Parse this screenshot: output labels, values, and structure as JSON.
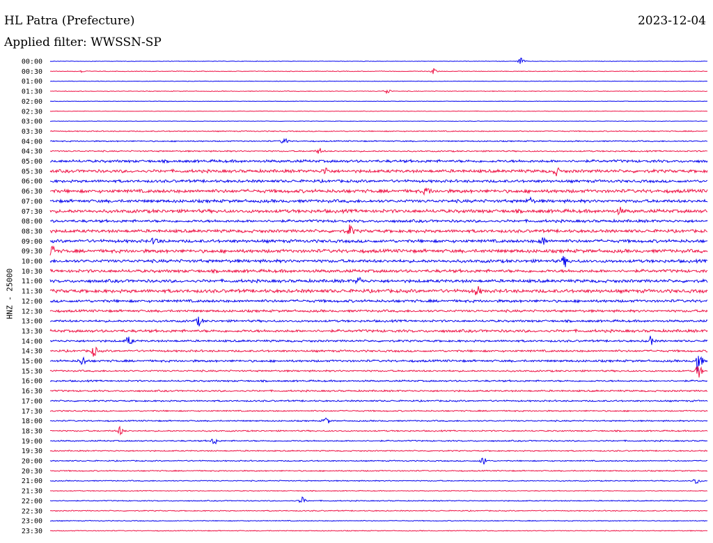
{
  "header": {
    "station": "HL Patra (Prefecture)",
    "date": "2023-12-04",
    "filter": "Applied filter: WWSSN-SP"
  },
  "colors": {
    "even_rows": "#0000ee",
    "odd_rows": "#ee1144",
    "background": "#ffffff"
  },
  "chart_data": {
    "type": "line",
    "subtype": "helicorder",
    "title": "HL Patra (Prefecture)",
    "date": "2023-12-04",
    "ylabel": "HNZ - 25000",
    "row_labels": [
      "00:00",
      "00:30",
      "01:00",
      "01:30",
      "02:00",
      "02:30",
      "03:00",
      "03:30",
      "04:00",
      "04:30",
      "05:00",
      "05:30",
      "06:00",
      "06:30",
      "07:00",
      "07:30",
      "08:00",
      "08:30",
      "09:00",
      "09:30",
      "10:00",
      "10:30",
      "11:00",
      "11:30",
      "12:00",
      "12:30",
      "13:00",
      "13:30",
      "14:00",
      "14:30",
      "15:00",
      "15:30",
      "16:00",
      "16:30",
      "17:00",
      "17:30",
      "18:00",
      "18:30",
      "19:00",
      "19:30",
      "20:00",
      "20:30",
      "21:00",
      "21:30",
      "22:00",
      "22:30",
      "23:00",
      "23:30"
    ],
    "row_color_cycle": [
      "#0000ee",
      "#ee1144"
    ],
    "noise_level": [
      0.3,
      0.4,
      0.3,
      0.4,
      0.3,
      0.3,
      0.3,
      0.6,
      0.7,
      0.8,
      1.6,
      1.8,
      1.6,
      2.0,
      1.8,
      2.0,
      1.6,
      1.8,
      1.8,
      2.0,
      1.8,
      1.8,
      1.8,
      2.0,
      1.6,
      1.4,
      1.3,
      1.6,
      1.2,
      1.2,
      1.3,
      1.0,
      1.0,
      1.0,
      0.9,
      0.8,
      0.8,
      0.8,
      0.8,
      0.7,
      0.7,
      0.7,
      0.6,
      0.5,
      0.6,
      0.6,
      0.5,
      0.5
    ],
    "bursts": [
      {
        "row": 0,
        "minute": 21.5,
        "amplitude": 5
      },
      {
        "row": 1,
        "minute": 17.5,
        "amplitude": 4
      },
      {
        "row": 1,
        "minute": 1.5,
        "amplitude": 2
      },
      {
        "row": 3,
        "minute": 15.4,
        "amplitude": 4
      },
      {
        "row": 8,
        "minute": 10.7,
        "amplitude": 5
      },
      {
        "row": 9,
        "minute": 12.3,
        "amplitude": 4
      },
      {
        "row": 11,
        "minute": 23.1,
        "amplitude": 5
      },
      {
        "row": 11,
        "minute": 12.6,
        "amplitude": 5
      },
      {
        "row": 13,
        "minute": 17.2,
        "amplitude": 5
      },
      {
        "row": 14,
        "minute": 21.9,
        "amplitude": 4
      },
      {
        "row": 15,
        "minute": 26.0,
        "amplitude": 4
      },
      {
        "row": 17,
        "minute": 13.7,
        "amplitude": 8
      },
      {
        "row": 18,
        "minute": 4.8,
        "amplitude": 5
      },
      {
        "row": 18,
        "minute": 22.5,
        "amplitude": 5
      },
      {
        "row": 19,
        "minute": 0.1,
        "amplitude": 7
      },
      {
        "row": 20,
        "minute": 23.5,
        "amplitude": 7
      },
      {
        "row": 22,
        "minute": 14.1,
        "amplitude": 5
      },
      {
        "row": 23,
        "minute": 19.5,
        "amplitude": 6
      },
      {
        "row": 26,
        "minute": 6.8,
        "amplitude": 6
      },
      {
        "row": 28,
        "minute": 3.6,
        "amplitude": 6
      },
      {
        "row": 28,
        "minute": 27.4,
        "amplitude": 6
      },
      {
        "row": 29,
        "minute": 2.0,
        "amplitude": 7
      },
      {
        "row": 30,
        "minute": 29.6,
        "amplitude": 16
      },
      {
        "row": 30,
        "minute": 1.5,
        "amplitude": 6
      },
      {
        "row": 31,
        "minute": 29.6,
        "amplitude": 9
      },
      {
        "row": 36,
        "minute": 12.6,
        "amplitude": 5
      },
      {
        "row": 37,
        "minute": 3.2,
        "amplitude": 6
      },
      {
        "row": 38,
        "minute": 7.5,
        "amplitude": 5
      },
      {
        "row": 40,
        "minute": 19.8,
        "amplitude": 6
      },
      {
        "row": 42,
        "minute": 29.5,
        "amplitude": 5
      },
      {
        "row": 44,
        "minute": 11.5,
        "amplitude": 5
      }
    ]
  }
}
